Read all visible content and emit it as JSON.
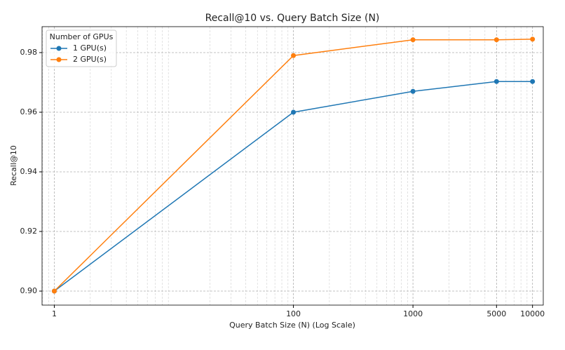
{
  "chart_data": {
    "type": "line",
    "title": "Recall@10 vs. Query Batch Size (N)",
    "xlabel": "Query Batch Size (N) (Log Scale)",
    "ylabel": "Recall@10",
    "x": [
      1,
      100,
      1000,
      5000,
      10000
    ],
    "series": [
      {
        "name": "1 GPU(s)",
        "color": "#1f77b4",
        "values": [
          0.9,
          0.96,
          0.967,
          0.9703,
          0.9703
        ]
      },
      {
        "name": "2 GPU(s)",
        "color": "#ff7f0e",
        "values": [
          0.9,
          0.979,
          0.9843,
          0.9843,
          0.9845
        ]
      }
    ],
    "xscale": "log",
    "xlim": [
      0.79,
      12300
    ],
    "ylim": [
      0.8953,
      0.9887
    ],
    "xticks": [
      1,
      100,
      1000,
      5000,
      10000
    ],
    "yticks": [
      {
        "value": 0.9,
        "label": "0.90"
      },
      {
        "value": 0.92,
        "label": "0.92"
      },
      {
        "value": 0.94,
        "label": "0.94"
      },
      {
        "value": 0.96,
        "label": "0.96"
      },
      {
        "value": 0.98,
        "label": "0.98"
      }
    ],
    "grid": true,
    "minor_grid": true,
    "legend_title": "Number of GPUs",
    "legend_loc": "upper left"
  }
}
